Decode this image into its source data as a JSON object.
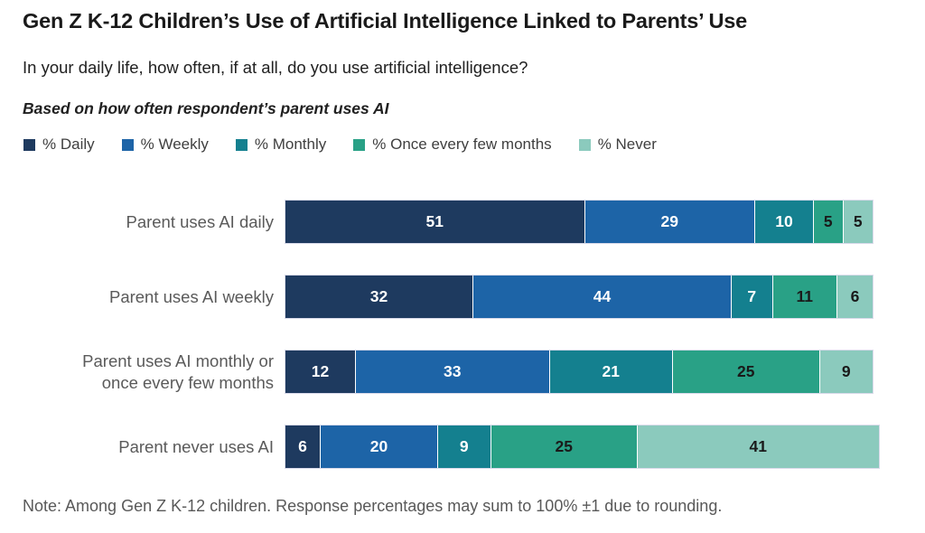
{
  "title": "Gen Z K-12 Children’s Use of Artificial Intelligence Linked to Parents’ Use",
  "subtitle": "In your daily life, how often, if at all, do you use artificial intelligence?",
  "qualifier": "Based on how often respondent’s parent uses AI",
  "note": "Note: Among Gen Z K-12 children. Response percentages may sum to 100% ±1 due to rounding.",
  "colors": {
    "daily": "#1e3a5f",
    "weekly": "#1d64a7",
    "monthly": "#14808f",
    "once_every_few_months": "#29a186",
    "never": "#8bcabd",
    "bar_outline": "#d9daea",
    "label_gray": "#5a5a5a"
  },
  "legend": [
    {
      "label": "% Daily",
      "color": "#1e3a5f"
    },
    {
      "label": "% Weekly",
      "color": "#1d64a7"
    },
    {
      "label": "% Monthly",
      "color": "#14808f"
    },
    {
      "label": "% Once every few months",
      "color": "#29a186"
    },
    {
      "label": "% Never",
      "color": "#8bcabd"
    }
  ],
  "chart_data": {
    "type": "bar",
    "orientation": "horizontal",
    "stacked": true,
    "title": "Gen Z K-12 Children’s Use of Artificial Intelligence Linked to Parents’ Use",
    "question": "In your daily life, how often, if at all, do you use artificial intelligence?",
    "grouping_note": "Based on how often respondent’s parent uses AI",
    "categories": [
      "Parent uses AI daily",
      "Parent uses AI weekly",
      "Parent uses AI monthly or\nonce every few months",
      "Parent never uses AI"
    ],
    "series": [
      {
        "name": "% Daily",
        "color": "#1e3a5f",
        "value_label_color": "#ffffff",
        "values": [
          51,
          32,
          12,
          6
        ]
      },
      {
        "name": "% Weekly",
        "color": "#1d64a7",
        "value_label_color": "#ffffff",
        "values": [
          29,
          44,
          33,
          20
        ]
      },
      {
        "name": "% Monthly",
        "color": "#14808f",
        "value_label_color": "#ffffff",
        "values": [
          10,
          7,
          21,
          9
        ]
      },
      {
        "name": "% Once every few months",
        "color": "#29a186",
        "value_label_color": "#1a1a1a",
        "values": [
          5,
          11,
          25,
          25
        ]
      },
      {
        "name": "% Never",
        "color": "#8bcabd",
        "value_label_color": "#1a1a1a",
        "values": [
          5,
          6,
          9,
          41
        ]
      }
    ],
    "xlim": [
      0,
      100
    ],
    "grid": false,
    "axes_visible": false,
    "legend_position": "top",
    "value_labels": true
  }
}
